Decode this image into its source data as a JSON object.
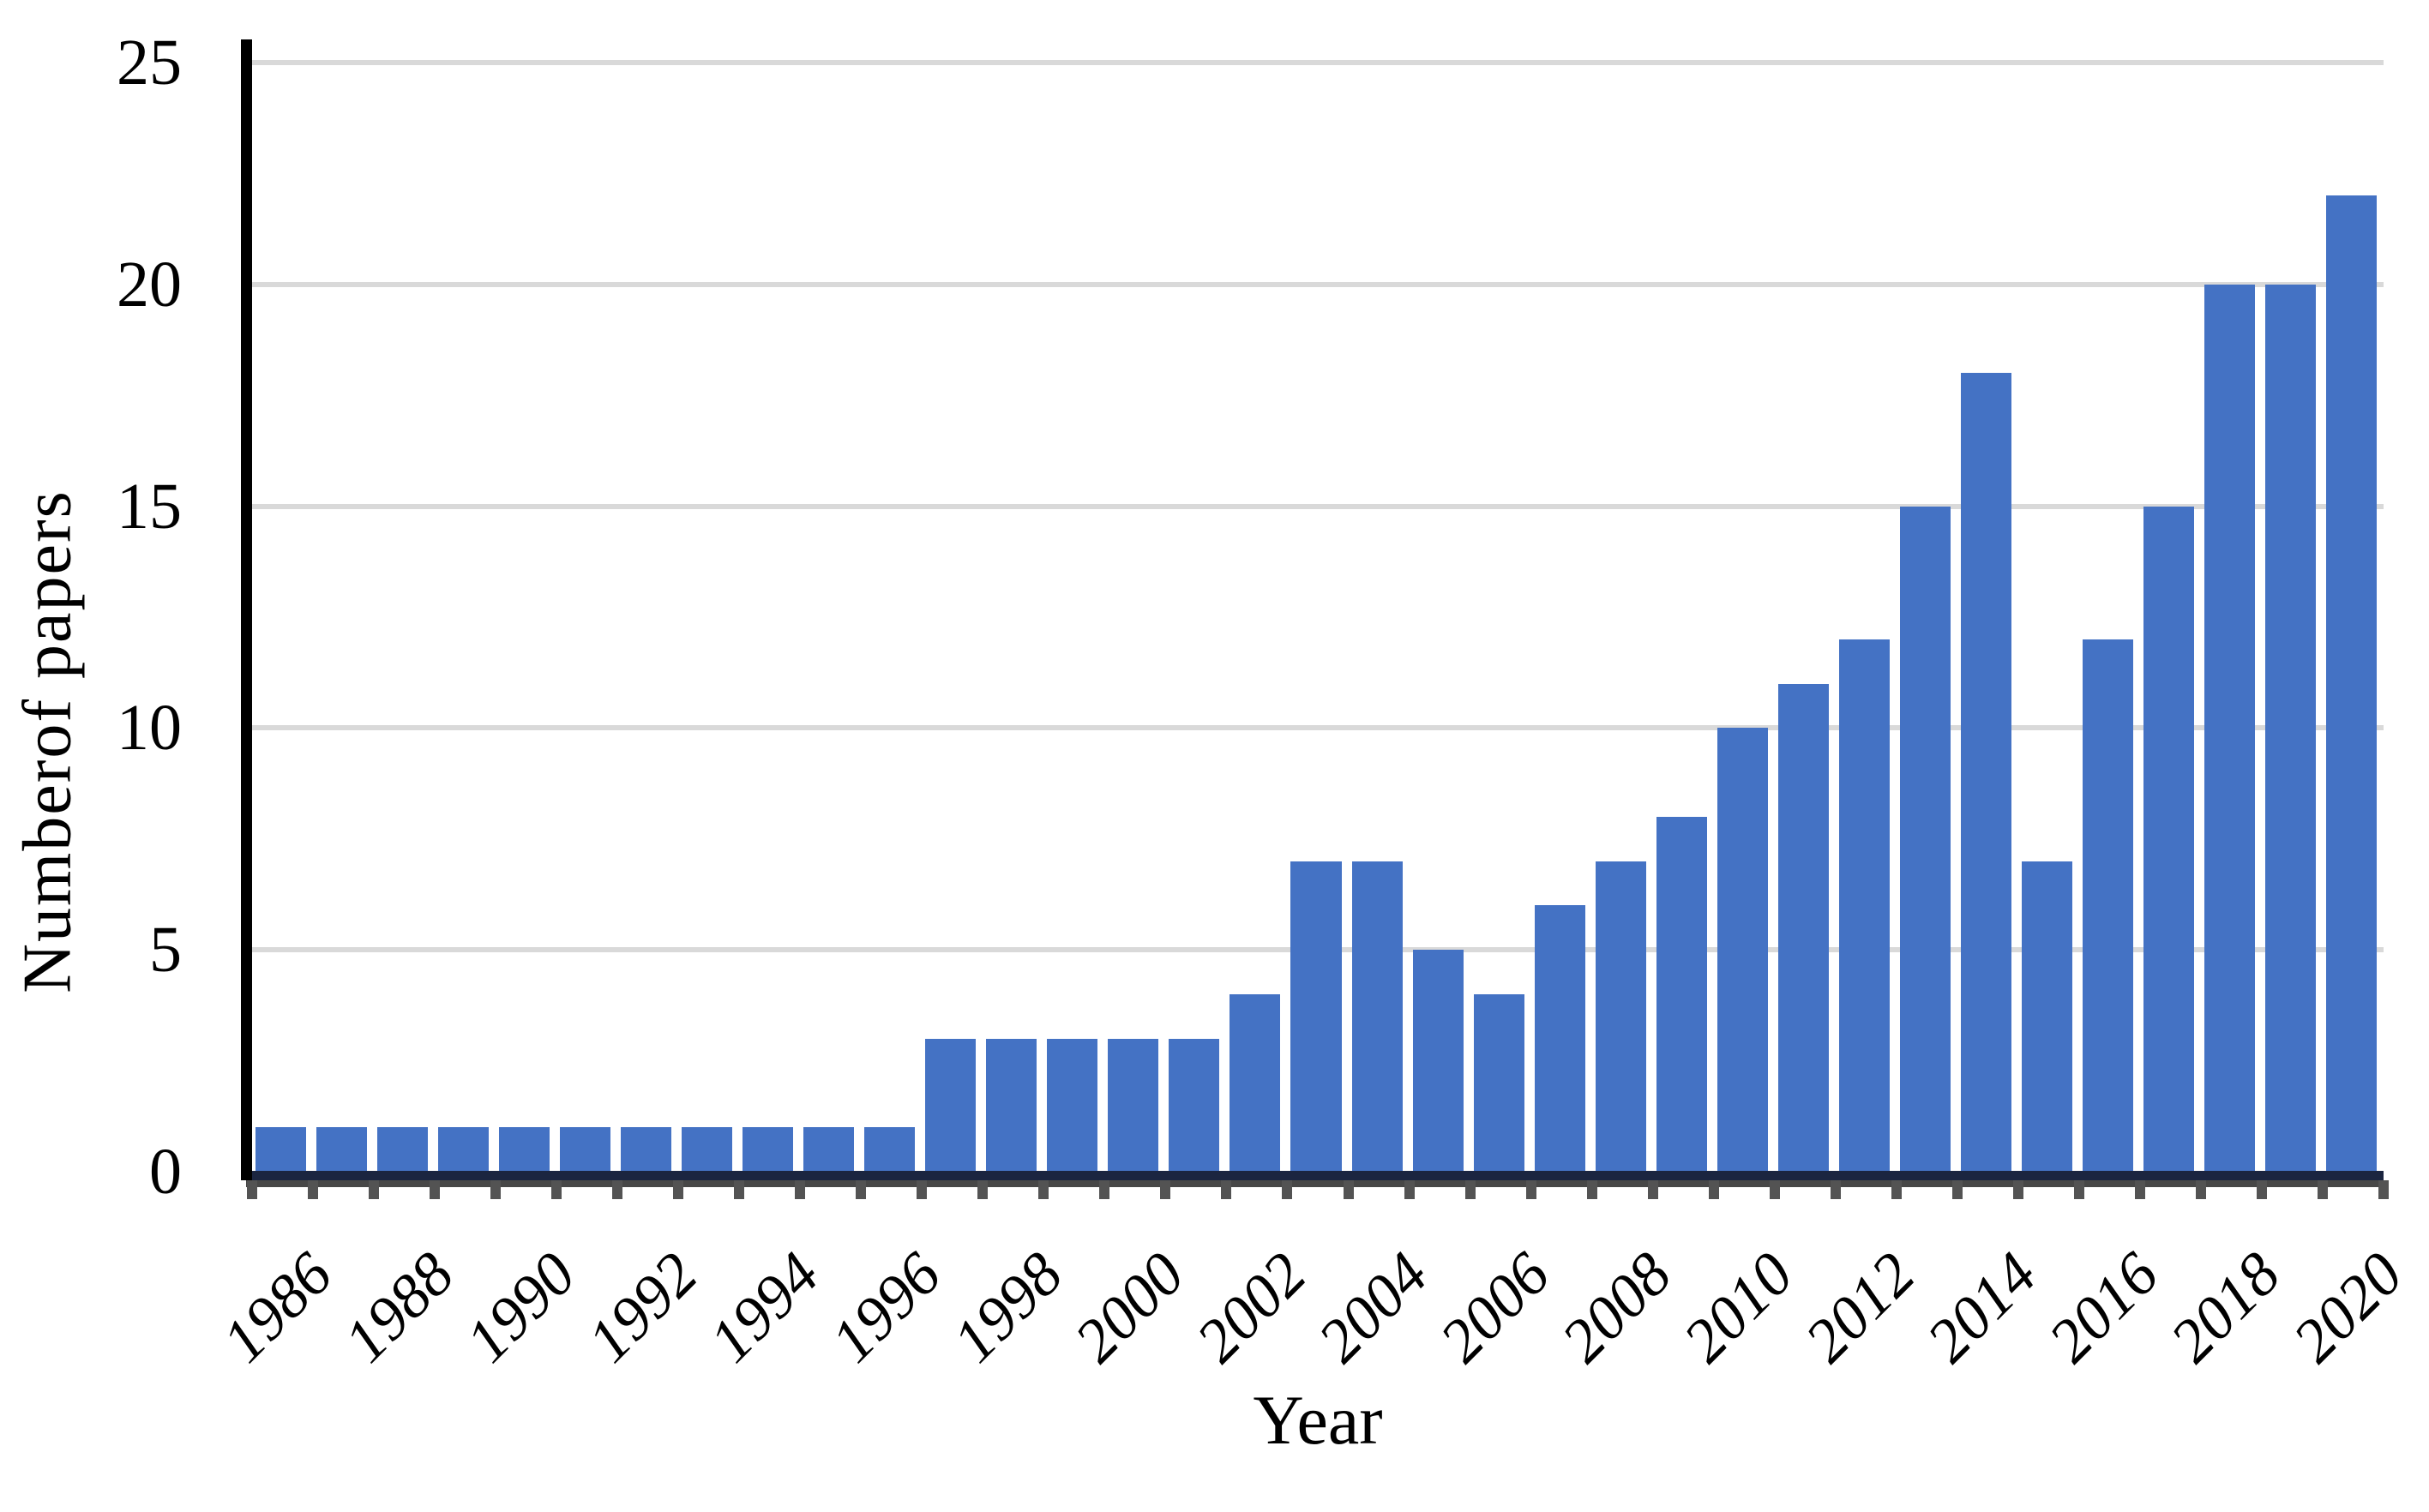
{
  "chart_data": {
    "type": "bar",
    "title": "",
    "xlabel": "Year",
    "ylabel": "Numberof papers",
    "categories": [
      1986,
      1987,
      1988,
      1989,
      1990,
      1991,
      1992,
      1993,
      1994,
      1995,
      1996,
      1997,
      1998,
      1999,
      2000,
      2001,
      2002,
      2003,
      2004,
      2005,
      2006,
      2007,
      2008,
      2009,
      2010,
      2011,
      2012,
      2013,
      2014,
      2015,
      2016,
      2017,
      2018,
      2019,
      2020
    ],
    "values": [
      1,
      1,
      1,
      1,
      1,
      1,
      1,
      1,
      1,
      1,
      1,
      3,
      3,
      3,
      3,
      3,
      4,
      7,
      7,
      5,
      4,
      6,
      7,
      8,
      10,
      11,
      12,
      15,
      18,
      7,
      12,
      15,
      20,
      20,
      22
    ],
    "ylim": [
      0,
      25
    ],
    "yticks": [
      0,
      5,
      10,
      15,
      20,
      25
    ],
    "ytick_labels": [
      "0",
      "5",
      "10",
      "15",
      "20",
      "25"
    ],
    "xtick_labels": [
      "1986",
      "1988",
      "1990",
      "1992",
      "1994",
      "1996",
      "1998",
      "2000",
      "2002",
      "2004",
      "2006",
      "2008",
      "2010",
      "2012",
      "2014",
      "2016",
      "2018",
      "2020"
    ],
    "grid": "horizontal",
    "legend": "none",
    "bar_color": "#4472C4",
    "gridline_color": "#D9D9D9",
    "y_axis_color": "#000000",
    "baseline_navy_color": "#1B2540",
    "baseline_gray_color": "#474747",
    "tick_color": "#535353",
    "text_color": "#000000"
  }
}
